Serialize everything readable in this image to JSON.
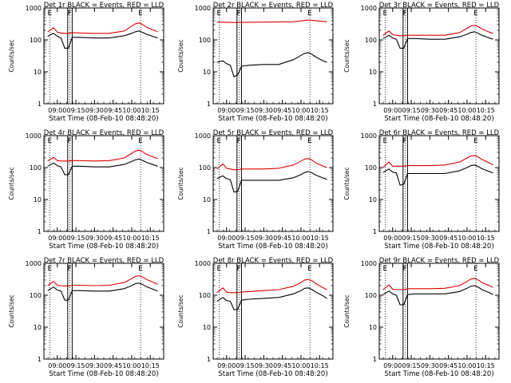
{
  "figure": {
    "colors": {
      "events": "#000000",
      "lld": "#e00000",
      "background": "#ffffff",
      "axis": "#000000"
    },
    "x_ticks": [
      "09:00",
      "09:15",
      "09:30",
      "09:45",
      "10:00",
      "10:15"
    ],
    "x_tick_hours": [
      9.0,
      9.25,
      9.5,
      9.75,
      10.0,
      10.25
    ],
    "y_ticks": [
      "1",
      "10",
      "100",
      "1000"
    ],
    "y_tick_values": [
      1,
      10,
      100,
      1000
    ],
    "marker_labels": [
      "E",
      "F",
      "E"
    ],
    "xlabel": "Start Time (08-Feb-10 08:48:20)",
    "ylabel": "Counts/sec",
    "ylim": [
      1,
      1000
    ]
  },
  "chart_data": [
    {
      "type": "line",
      "title": "Det 1r BLACK = Events, RED = LLD",
      "series": [
        {
          "name": "Events",
          "color": "#000000",
          "x": [
            8.87,
            8.95,
            9.0,
            9.05,
            9.1,
            9.15,
            9.2,
            9.3,
            9.5,
            9.7,
            9.9,
            10.0,
            10.05,
            10.1,
            10.15,
            10.2,
            10.3,
            10.35
          ],
          "values": [
            130,
            160,
            130,
            115,
            55,
            55,
            120,
            120,
            115,
            115,
            135,
            160,
            180,
            190,
            170,
            150,
            125,
            115
          ]
        },
        {
          "name": "LLD",
          "color": "#e00000",
          "x": [
            8.87,
            8.95,
            9.0,
            9.05,
            9.1,
            9.15,
            9.2,
            9.3,
            9.5,
            9.7,
            9.9,
            10.0,
            10.05,
            10.1,
            10.15,
            10.2,
            10.3,
            10.35
          ],
          "values": [
            180,
            240,
            175,
            165,
            160,
            160,
            170,
            165,
            160,
            160,
            190,
            270,
            320,
            340,
            300,
            250,
            200,
            180
          ]
        }
      ]
    },
    {
      "type": "line",
      "title": "Det 2r BLACK = Events, RED = LLD",
      "series": [
        {
          "name": "Events",
          "color": "#000000",
          "x": [
            8.87,
            8.95,
            9.0,
            9.05,
            9.1,
            9.15,
            9.2,
            9.3,
            9.5,
            9.7,
            9.9,
            10.0,
            10.05,
            10.1,
            10.15,
            10.2,
            10.3,
            10.35
          ],
          "values": [
            20,
            22,
            18,
            16,
            7,
            8,
            15,
            16,
            17,
            17,
            24,
            33,
            38,
            40,
            35,
            29,
            22,
            20
          ]
        },
        {
          "name": "LLD",
          "color": "#e00000",
          "x": [
            8.87,
            9.1,
            9.5,
            9.9,
            10.1,
            10.3,
            10.35
          ],
          "values": [
            360,
            350,
            360,
            370,
            420,
            380,
            370
          ]
        }
      ]
    },
    {
      "type": "line",
      "title": "Det 3r BLACK = Events, RED = LLD",
      "series": [
        {
          "name": "Events",
          "color": "#000000",
          "x": [
            8.87,
            8.95,
            9.0,
            9.05,
            9.1,
            9.15,
            9.2,
            9.3,
            9.5,
            9.7,
            9.9,
            10.0,
            10.05,
            10.1,
            10.15,
            10.2,
            10.3,
            10.35
          ],
          "values": [
            110,
            140,
            115,
            105,
            55,
            55,
            110,
            110,
            105,
            105,
            125,
            150,
            170,
            180,
            160,
            140,
            115,
            105
          ]
        },
        {
          "name": "LLD",
          "color": "#e00000",
          "x": [
            8.87,
            8.95,
            9.0,
            9.05,
            9.1,
            9.15,
            9.2,
            9.3,
            9.5,
            9.7,
            9.9,
            10.0,
            10.05,
            10.1,
            10.15,
            10.2,
            10.3,
            10.35
          ],
          "values": [
            140,
            190,
            145,
            140,
            135,
            135,
            140,
            140,
            140,
            140,
            170,
            230,
            270,
            290,
            260,
            220,
            175,
            160
          ]
        }
      ]
    },
    {
      "type": "line",
      "title": "Det 4r BLACK = Events, RED = LLD",
      "series": [
        {
          "name": "Events",
          "color": "#000000",
          "x": [
            8.87,
            8.95,
            9.0,
            9.05,
            9.1,
            9.15,
            9.2,
            9.3,
            9.5,
            9.7,
            9.9,
            10.0,
            10.05,
            10.1,
            10.15,
            10.2,
            10.3,
            10.35
          ],
          "values": [
            110,
            140,
            115,
            105,
            60,
            60,
            110,
            110,
            105,
            105,
            125,
            155,
            175,
            185,
            165,
            145,
            120,
            110
          ]
        },
        {
          "name": "LLD",
          "color": "#e00000",
          "x": [
            8.87,
            8.95,
            9.0,
            9.05,
            9.1,
            9.15,
            9.2,
            9.3,
            9.5,
            9.7,
            9.9,
            10.0,
            10.05,
            10.1,
            10.15,
            10.2,
            10.3,
            10.35
          ],
          "values": [
            160,
            210,
            165,
            160,
            160,
            160,
            165,
            165,
            160,
            165,
            200,
            280,
            330,
            350,
            310,
            260,
            210,
            190
          ]
        }
      ]
    },
    {
      "type": "line",
      "title": "Det 5r BLACK = Events, RED = LLD",
      "series": [
        {
          "name": "Events",
          "color": "#000000",
          "x": [
            8.87,
            8.95,
            9.0,
            9.05,
            9.1,
            9.15,
            9.2,
            9.3,
            9.5,
            9.7,
            9.9,
            10.0,
            10.05,
            10.1,
            10.15,
            10.2,
            10.3,
            10.35
          ],
          "values": [
            45,
            55,
            45,
            42,
            17,
            18,
            40,
            40,
            40,
            40,
            48,
            60,
            70,
            75,
            68,
            58,
            47,
            43
          ]
        },
        {
          "name": "LLD",
          "color": "#e00000",
          "x": [
            8.87,
            8.95,
            9.0,
            9.05,
            9.1,
            9.15,
            9.2,
            9.3,
            9.5,
            9.7,
            9.9,
            10.0,
            10.05,
            10.1,
            10.15,
            10.2,
            10.3,
            10.35
          ],
          "values": [
            90,
            130,
            95,
            90,
            85,
            85,
            90,
            90,
            90,
            95,
            120,
            160,
            185,
            190,
            170,
            140,
            110,
            100
          ]
        }
      ]
    },
    {
      "type": "line",
      "title": "Det 6r BLACK = Events, RED = LLD",
      "series": [
        {
          "name": "Events",
          "color": "#000000",
          "x": [
            8.87,
            8.95,
            9.0,
            9.05,
            9.1,
            9.15,
            9.2,
            9.3,
            9.5,
            9.7,
            9.9,
            10.0,
            10.05,
            10.1,
            10.15,
            10.2,
            10.3,
            10.35
          ],
          "values": [
            70,
            90,
            72,
            68,
            28,
            30,
            65,
            65,
            65,
            65,
            80,
            100,
            115,
            120,
            108,
            92,
            75,
            68
          ]
        },
        {
          "name": "LLD",
          "color": "#e00000",
          "x": [
            8.87,
            8.95,
            9.0,
            9.05,
            9.1,
            9.15,
            9.2,
            9.3,
            9.5,
            9.7,
            9.9,
            10.0,
            10.05,
            10.1,
            10.15,
            10.2,
            10.3,
            10.35
          ],
          "values": [
            100,
            150,
            110,
            110,
            110,
            110,
            115,
            115,
            115,
            120,
            150,
            200,
            230,
            240,
            215,
            180,
            140,
            120
          ]
        }
      ]
    },
    {
      "type": "line",
      "title": "Det 7r BLACK = Events, RED = LLD",
      "series": [
        {
          "name": "Events",
          "color": "#000000",
          "x": [
            8.87,
            8.95,
            9.0,
            9.05,
            9.1,
            9.15,
            9.2,
            9.3,
            9.5,
            9.7,
            9.9,
            10.0,
            10.05,
            10.1,
            10.15,
            10.2,
            10.3,
            10.35
          ],
          "values": [
            140,
            180,
            145,
            135,
            70,
            70,
            140,
            140,
            135,
            135,
            160,
            200,
            230,
            240,
            215,
            185,
            150,
            135
          ]
        },
        {
          "name": "LLD",
          "color": "#e00000",
          "x": [
            8.87,
            8.95,
            9.0,
            9.05,
            9.1,
            9.15,
            9.2,
            9.3,
            9.5,
            9.7,
            9.9,
            10.0,
            10.05,
            10.1,
            10.15,
            10.2,
            10.3,
            10.35
          ],
          "values": [
            200,
            270,
            205,
            200,
            195,
            195,
            205,
            205,
            200,
            205,
            250,
            330,
            390,
            410,
            370,
            310,
            250,
            220
          ]
        }
      ]
    },
    {
      "type": "line",
      "title": "Det 8r BLACK = Events, RED = LLD",
      "series": [
        {
          "name": "Events",
          "color": "#000000",
          "x": [
            8.87,
            8.95,
            9.0,
            9.05,
            9.1,
            9.15,
            9.2,
            9.3,
            9.5,
            9.7,
            9.9,
            10.0,
            10.05,
            10.1,
            10.15,
            10.2,
            10.3,
            10.35
          ],
          "values": [
            65,
            85,
            68,
            65,
            35,
            36,
            70,
            75,
            80,
            85,
            110,
            140,
            165,
            170,
            150,
            125,
            95,
            80
          ]
        },
        {
          "name": "LLD",
          "color": "#e00000",
          "x": [
            8.87,
            8.95,
            9.0,
            9.05,
            9.1,
            9.15,
            9.2,
            9.3,
            9.5,
            9.7,
            9.9,
            10.0,
            10.05,
            10.1,
            10.15,
            10.2,
            10.3,
            10.35
          ],
          "values": [
            120,
            170,
            125,
            120,
            120,
            120,
            125,
            130,
            140,
            150,
            190,
            250,
            300,
            310,
            280,
            230,
            170,
            150
          ]
        }
      ]
    },
    {
      "type": "line",
      "title": "Det 9r BLACK = Events, RED = LLD",
      "series": [
        {
          "name": "Events",
          "color": "#000000",
          "x": [
            8.87,
            8.95,
            9.0,
            9.05,
            9.1,
            9.15,
            9.2,
            9.3,
            9.5,
            9.7,
            9.9,
            10.0,
            10.05,
            10.1,
            10.15,
            10.2,
            10.3,
            10.35
          ],
          "values": [
            105,
            135,
            110,
            100,
            50,
            50,
            105,
            110,
            110,
            110,
            130,
            165,
            190,
            200,
            180,
            150,
            120,
            105
          ]
        },
        {
          "name": "LLD",
          "color": "#e00000",
          "x": [
            8.87,
            8.95,
            9.0,
            9.05,
            9.1,
            9.15,
            9.2,
            9.3,
            9.5,
            9.7,
            9.9,
            10.0,
            10.05,
            10.1,
            10.15,
            10.2,
            10.3,
            10.35
          ],
          "values": [
            150,
            210,
            155,
            150,
            150,
            150,
            160,
            160,
            160,
            165,
            200,
            270,
            320,
            340,
            300,
            250,
            200,
            175
          ]
        }
      ]
    }
  ]
}
